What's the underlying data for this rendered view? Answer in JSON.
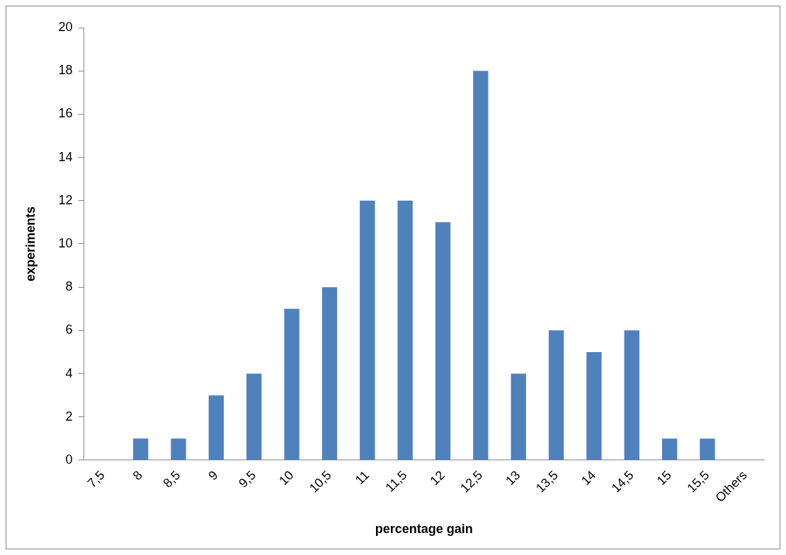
{
  "chart_data": {
    "type": "bar",
    "xlabel": "percentage gain",
    "ylabel": "experiments",
    "categories": [
      "7,5",
      "8",
      "8,5",
      "9",
      "9,5",
      "10",
      "10,5",
      "11",
      "11,5",
      "12",
      "12,5",
      "13",
      "13,5",
      "14",
      "14,5",
      "15",
      "15,5",
      "Others"
    ],
    "values": [
      0,
      1,
      1,
      3,
      4,
      7,
      8,
      12,
      12,
      11,
      18,
      4,
      6,
      5,
      6,
      1,
      1,
      0
    ],
    "color": "#4f81bd",
    "ylim": [
      0,
      20
    ],
    "yticks": [
      0,
      2,
      4,
      6,
      8,
      10,
      12,
      14,
      16,
      18,
      20
    ],
    "grid": false,
    "legend": false
  }
}
